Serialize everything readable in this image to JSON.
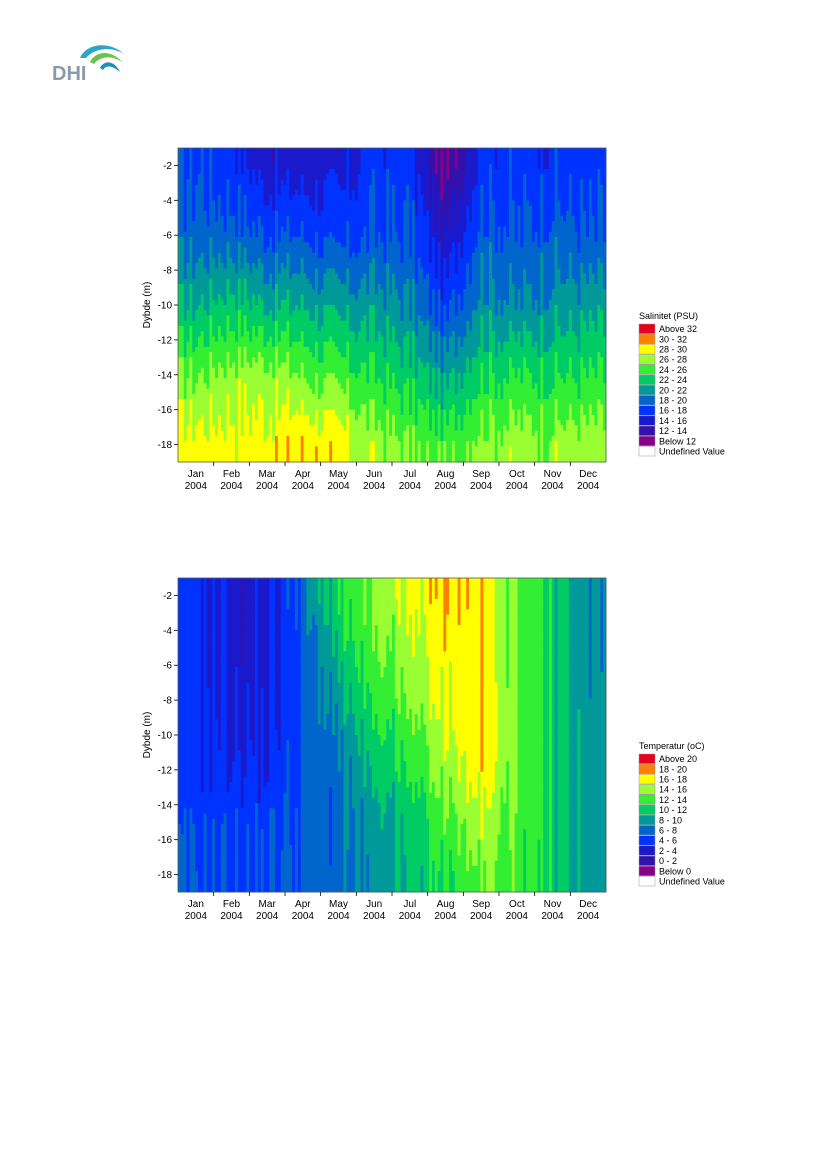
{
  "logo": {
    "text": "DHI"
  },
  "months": [
    {
      "m": "Jan",
      "y": "2004"
    },
    {
      "m": "Feb",
      "y": "2004"
    },
    {
      "m": "Mar",
      "y": "2004"
    },
    {
      "m": "Apr",
      "y": "2004"
    },
    {
      "m": "May",
      "y": "2004"
    },
    {
      "m": "Jun",
      "y": "2004"
    },
    {
      "m": "Jul",
      "y": "2004"
    },
    {
      "m": "Aug",
      "y": "2004"
    },
    {
      "m": "Sep",
      "y": "2004"
    },
    {
      "m": "Oct",
      "y": "2004"
    },
    {
      "m": "Nov",
      "y": "2004"
    },
    {
      "m": "Dec",
      "y": "2004"
    }
  ],
  "colors": {
    "classes": [
      "#e8001c",
      "#ff8000",
      "#ffff00",
      "#99ff33",
      "#33ee33",
      "#00cc66",
      "#009999",
      "#0066cc",
      "#0033ff",
      "#1a1acc",
      "#3311aa",
      "#550099",
      "#880088",
      "#ffffff"
    ]
  },
  "chart_data": [
    {
      "type": "heatmap",
      "title": "",
      "xlabel": "",
      "ylabel": "Dybde (m)",
      "xlim": [
        "2004-01-01",
        "2004-12-31"
      ],
      "ylim": [
        -19,
        -1
      ],
      "yticks": [
        -2,
        -4,
        -6,
        -8,
        -10,
        -12,
        -14,
        -16,
        -18
      ],
      "legend_title": "Salinitet (PSU)",
      "legend_position": "right",
      "legend": [
        "Above 32",
        "30 - 32",
        "28 - 30",
        "26 - 28",
        "24 - 26",
        "22 - 24",
        "20 - 22",
        "18 - 20",
        "16 - 18",
        "14 - 16",
        "12 - 14",
        "Below 12",
        "Undefined Value"
      ],
      "legend_colors": [
        "#e8001c",
        "#ff8000",
        "#ffff00",
        "#99ff33",
        "#33ee33",
        "#00cc66",
        "#009999",
        "#0066cc",
        "#0033ff",
        "#1a1acc",
        "#3311aa",
        "#880088",
        "#ffffff"
      ],
      "profile_months": [
        "Jan",
        "Feb",
        "Mar",
        "Apr",
        "May",
        "Jun",
        "Jul",
        "Aug",
        "Sep",
        "Oct",
        "Nov",
        "Dec"
      ],
      "profiles": {
        "depths": [
          -2,
          -6,
          -10,
          -14,
          -18
        ],
        "values": [
          [
            18,
            19,
            22,
            26,
            29
          ],
          [
            17,
            19,
            23,
            27,
            29
          ],
          [
            15,
            18,
            22,
            27,
            29
          ],
          [
            15,
            18,
            22,
            26,
            30
          ],
          [
            15,
            17,
            21,
            25,
            29
          ],
          [
            17,
            18,
            21,
            24,
            27
          ],
          [
            17,
            18,
            20,
            23,
            26
          ],
          [
            11,
            14,
            17,
            21,
            25
          ],
          [
            17,
            19,
            21,
            24,
            27
          ],
          [
            17,
            18,
            20,
            24,
            27
          ],
          [
            17,
            19,
            21,
            24,
            27
          ],
          [
            17,
            18,
            21,
            24,
            27
          ]
        ]
      }
    },
    {
      "type": "heatmap",
      "title": "",
      "xlabel": "",
      "ylabel": "Dybde (m)",
      "xlim": [
        "2004-01-01",
        "2004-12-31"
      ],
      "ylim": [
        -19,
        -1
      ],
      "yticks": [
        -2,
        -4,
        -6,
        -8,
        -10,
        -12,
        -14,
        -16,
        -18
      ],
      "legend_title": "Temperatur (oC)",
      "legend_position": "right",
      "legend": [
        "Above 20",
        "18 - 20",
        "16 - 18",
        "14 - 16",
        "12 - 14",
        "10 - 12",
        "8 - 10",
        "6 -  8",
        "4 -  6",
        "2 -  4",
        "0 -  2",
        "Below  0",
        "Undefined Value"
      ],
      "legend_colors": [
        "#e8001c",
        "#ff8000",
        "#ffff00",
        "#99ff33",
        "#33ee33",
        "#00cc66",
        "#009999",
        "#0066cc",
        "#0033ff",
        "#1a1acc",
        "#3311aa",
        "#880088",
        "#ffffff"
      ],
      "profile_months": [
        "Jan",
        "Feb",
        "Mar",
        "Apr",
        "May",
        "Jun",
        "Jul",
        "Aug",
        "Sep",
        "Oct",
        "Nov",
        "Dec"
      ],
      "profiles": {
        "depths": [
          -2,
          -6,
          -10,
          -14,
          -18
        ],
        "values": [
          [
            5,
            5,
            5,
            5,
            6
          ],
          [
            3,
            3,
            4,
            5,
            6
          ],
          [
            3,
            3,
            4,
            5,
            6
          ],
          [
            7,
            6,
            6,
            6,
            7
          ],
          [
            12,
            10,
            8,
            7,
            7
          ],
          [
            14,
            13,
            11,
            9,
            8
          ],
          [
            16,
            15,
            13,
            11,
            10
          ],
          [
            18,
            17,
            16,
            14,
            12
          ],
          [
            17,
            17,
            18,
            16,
            14
          ],
          [
            14,
            14,
            14,
            14,
            13
          ],
          [
            11,
            11,
            11,
            11,
            11
          ],
          [
            8,
            8,
            9,
            9,
            9
          ]
        ]
      }
    }
  ]
}
